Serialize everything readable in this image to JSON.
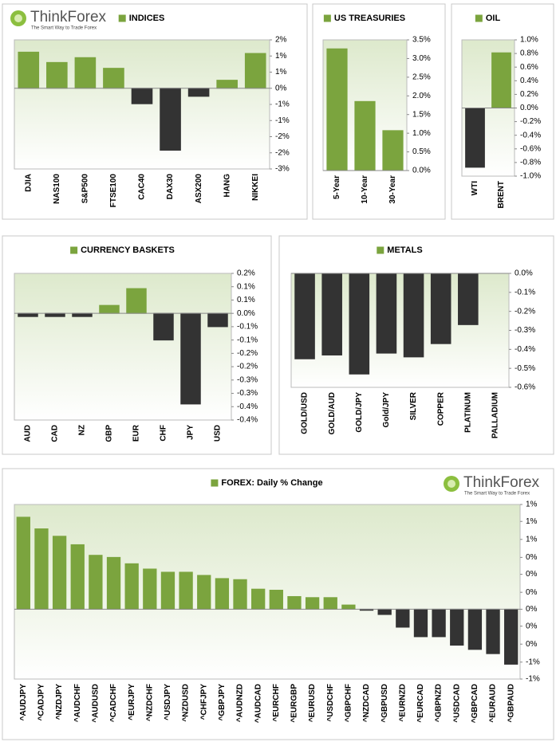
{
  "logo": {
    "name": "ThinkForex",
    "tagline": "The Smart Way to Trade Forex"
  },
  "chart_data": [
    {
      "type": "bar",
      "title": "INDICES",
      "categories": [
        "DJIA",
        "NAS100",
        "S&P500",
        "FTSE100",
        "CAC40",
        "DAX30",
        "ASX200",
        "HANG",
        "NIKKEI"
      ],
      "values": [
        1.12,
        0.8,
        0.95,
        0.62,
        -0.48,
        -1.92,
        -0.25,
        0.25,
        1.08
      ],
      "ylim": [
        -2.5,
        1.5
      ],
      "yticks": [
        {
          "value": 1.5,
          "label": "2%"
        },
        {
          "value": 1,
          "label": "1%"
        },
        {
          "value": 0.5,
          "label": "1%"
        },
        {
          "value": 0,
          "label": "0%"
        },
        {
          "value": -0.5,
          "label": "-1%"
        },
        {
          "value": -1,
          "label": "-1%"
        },
        {
          "value": -1.5,
          "label": "-2%"
        },
        {
          "value": -2,
          "label": "-2%"
        },
        {
          "value": -2.5,
          "label": "-3%"
        }
      ],
      "positive_color": "#7ba43e",
      "negative_color": "#333333"
    },
    {
      "type": "bar",
      "title": "US TREASURIES",
      "categories": [
        "5-Year",
        "10-Year",
        "30-Year"
      ],
      "values": [
        3.26,
        1.85,
        1.07
      ],
      "ylim": [
        0,
        3.5
      ],
      "yticks": [
        {
          "value": 3.5,
          "label": "3.5%"
        },
        {
          "value": 3,
          "label": "3.0%"
        },
        {
          "value": 2.5,
          "label": "2.5%"
        },
        {
          "value": 2,
          "label": "2.0%"
        },
        {
          "value": 1.5,
          "label": "1.5%"
        },
        {
          "value": 1,
          "label": "1.0%"
        },
        {
          "value": 0.5,
          "label": "0.5%"
        },
        {
          "value": 0,
          "label": "0.0%"
        }
      ],
      "positive_color": "#7ba43e",
      "negative_color": "#333333"
    },
    {
      "type": "bar",
      "title": "OIL",
      "categories": [
        "WTI",
        "BRENT"
      ],
      "values": [
        -0.87,
        0.81
      ],
      "ylim": [
        -1,
        1
      ],
      "yticks": [
        {
          "value": 1,
          "label": "1.0%"
        },
        {
          "value": 0.8,
          "label": "0.8%"
        },
        {
          "value": 0.6,
          "label": "0.6%"
        },
        {
          "value": 0.4,
          "label": "0.4%"
        },
        {
          "value": 0.2,
          "label": "0.2%"
        },
        {
          "value": 0,
          "label": "0.0%"
        },
        {
          "value": -0.2,
          "label": "-0.2%"
        },
        {
          "value": -0.4,
          "label": "-0.4%"
        },
        {
          "value": -0.6,
          "label": "-0.6%"
        },
        {
          "value": -0.8,
          "label": "-0.8%"
        },
        {
          "value": -1,
          "label": "-1.0%"
        }
      ],
      "positive_color": "#7ba43e",
      "negative_color": "#333333"
    },
    {
      "type": "bar",
      "title": "CURRENCY BASKETS",
      "categories": [
        "AUD",
        "CAD",
        "NZ",
        "GBP",
        "EUR",
        "CHF",
        "JPY",
        "USD"
      ],
      "values": [
        -0.012,
        -0.012,
        -0.012,
        0.03,
        0.093,
        -0.1,
        -0.34,
        -0.05
      ],
      "ylim": [
        -0.4,
        0.15
      ],
      "yticks": [
        {
          "value": 0.15,
          "label": "0.2%"
        },
        {
          "value": 0.1,
          "label": "0.1%"
        },
        {
          "value": 0.05,
          "label": "0.1%"
        },
        {
          "value": 0,
          "label": "0.0%"
        },
        {
          "value": -0.05,
          "label": "-0.1%"
        },
        {
          "value": -0.1,
          "label": "-0.1%"
        },
        {
          "value": -0.15,
          "label": "-0.2%"
        },
        {
          "value": -0.2,
          "label": "-0.2%"
        },
        {
          "value": -0.25,
          "label": "-0.3%"
        },
        {
          "value": -0.3,
          "label": "-0.3%"
        },
        {
          "value": -0.35,
          "label": "-0.4%"
        },
        {
          "value": -0.4,
          "label": "-0.4%"
        }
      ],
      "positive_color": "#7ba43e",
      "negative_color": "#333333"
    },
    {
      "type": "bar",
      "title": "METALS",
      "categories": [
        "GOLD/USD",
        "GOLD/AUD",
        "GOLD/JPY",
        "Gold/JPY",
        "SILVER",
        "COPPER",
        "PLATINUM",
        "PALLADIUM"
      ],
      "values": [
        -0.45,
        -0.43,
        -0.53,
        -0.42,
        -0.44,
        -0.37,
        -0.27,
        0
      ],
      "ylim": [
        -0.6,
        0
      ],
      "yticks": [
        {
          "value": 0,
          "label": "0.0%"
        },
        {
          "value": -0.1,
          "label": "-0.1%"
        },
        {
          "value": -0.2,
          "label": "-0.2%"
        },
        {
          "value": -0.3,
          "label": "-0.3%"
        },
        {
          "value": -0.4,
          "label": "-0.4%"
        },
        {
          "value": -0.5,
          "label": "-0.5%"
        },
        {
          "value": -0.6,
          "label": "-0.6%"
        }
      ],
      "positive_color": "#7ba43e",
      "negative_color": "#333333"
    },
    {
      "type": "bar",
      "title": "FOREX: Daily % Change",
      "categories": [
        "^AUDJPY",
        "^CADJPY",
        "^NZDJPY",
        "^AUDCHF",
        "^AUDUSD",
        "^CADCHF",
        "^EURJPY",
        "^NZDCHF",
        "^USDJPY",
        "^NZDUSD",
        "^CHFJPY",
        "^GBPJPY",
        "^AUDNZD",
        "^AUDCAD",
        "^EURCHF",
        "^EURGBP",
        "^EURUSD",
        "^USDCHF",
        "^GBPCHF",
        "^NZDCAD",
        "^GBPUSD",
        "^EURNZD",
        "^EURCAD",
        "^GBPNZD",
        "^USDCAD",
        "^GBPCAD",
        "^EURAUD",
        "^GBPAUD"
      ],
      "values": [
        0.87,
        0.76,
        0.69,
        0.61,
        0.51,
        0.49,
        0.43,
        0.38,
        0.35,
        0.35,
        0.32,
        0.29,
        0.28,
        0.19,
        0.18,
        0.12,
        0.11,
        0.11,
        0.04,
        -0.01,
        -0.05,
        -0.17,
        -0.26,
        -0.26,
        -0.34,
        -0.38,
        -0.42,
        -0.52
      ],
      "ylim": [
        -0.66,
        0.99
      ],
      "yticks": [
        {
          "value": 0.99,
          "label": "1%"
        },
        {
          "value": 0.83,
          "label": "1%"
        },
        {
          "value": 0.66,
          "label": "1%"
        },
        {
          "value": 0.49,
          "label": "0%"
        },
        {
          "value": 0.33,
          "label": "0%"
        },
        {
          "value": 0.16,
          "label": "0%"
        },
        {
          "value": 0,
          "label": "0%"
        },
        {
          "value": -0.16,
          "label": "0%"
        },
        {
          "value": -0.33,
          "label": "0%"
        },
        {
          "value": -0.5,
          "label": "-1%"
        },
        {
          "value": -0.66,
          "label": "-1%"
        }
      ],
      "positive_color": "#7ba43e",
      "negative_color": "#333333"
    }
  ]
}
